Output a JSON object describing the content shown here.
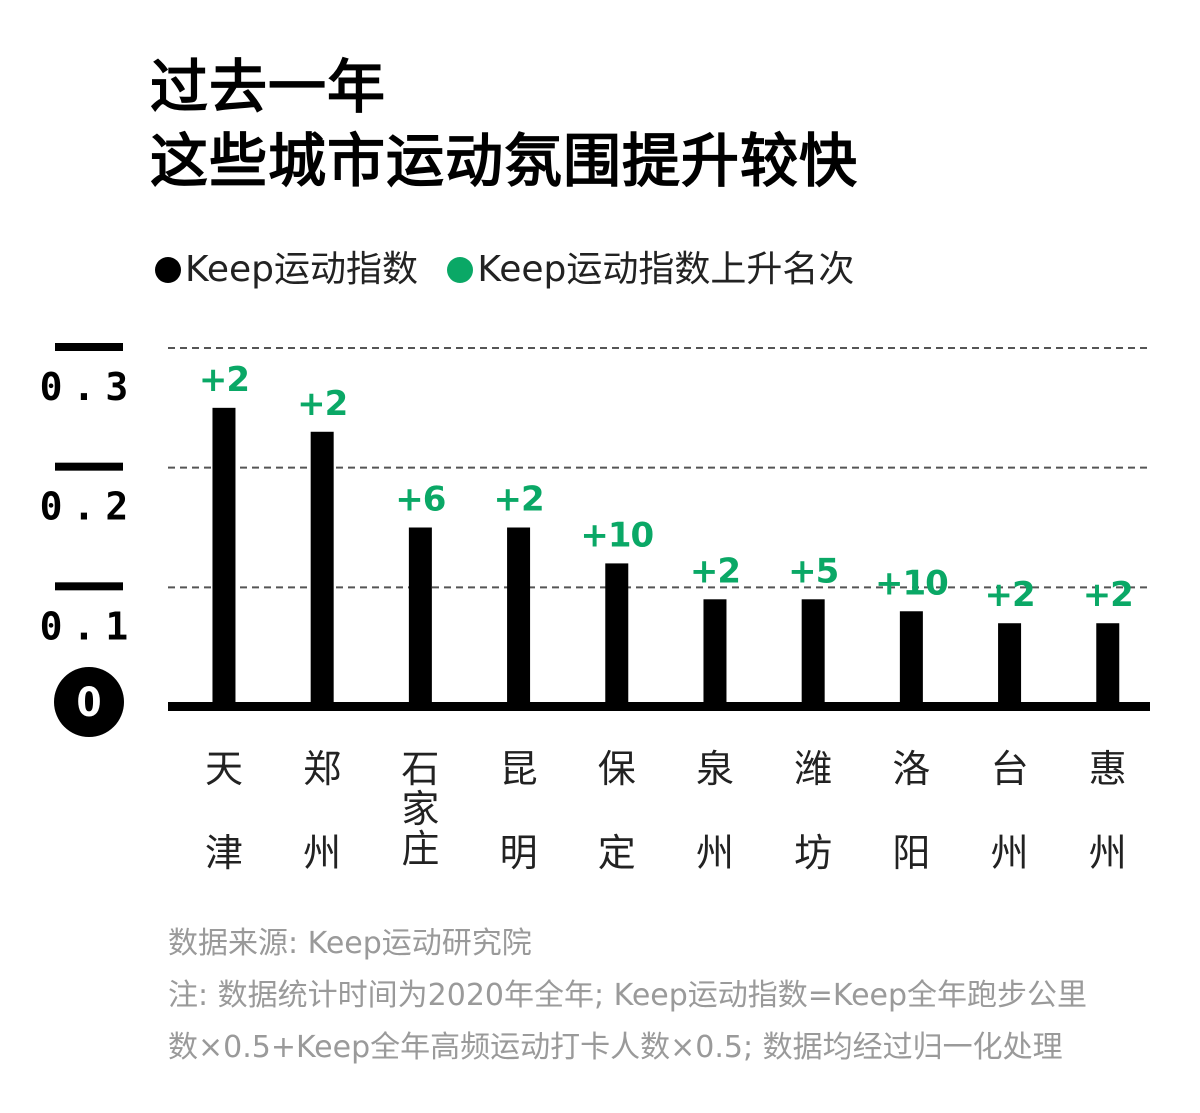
{
  "title": {
    "line1": "过去一年",
    "line2": "这些城市运动氛围提升较快"
  },
  "legend": [
    {
      "label": "Keep运动指数",
      "color": "#000000"
    },
    {
      "label": "Keep运动指数上升名次",
      "color": "#0aa866"
    }
  ],
  "chart_data": {
    "type": "bar",
    "categories": [
      "天津",
      "郑州",
      "石家庄",
      "昆明",
      "保定",
      "泉州",
      "潍坊",
      "洛阳",
      "台州",
      "惠州"
    ],
    "series": [
      {
        "name": "Keep运动指数",
        "values": [
          0.25,
          0.23,
          0.15,
          0.15,
          0.12,
          0.09,
          0.09,
          0.08,
          0.07,
          0.07
        ]
      },
      {
        "name": "Keep运动指数上升名次",
        "values": [
          "+2",
          "+2",
          "+6",
          "+2",
          "+10",
          "+2",
          "+5",
          "+10",
          "+2",
          "+2"
        ]
      }
    ],
    "ylim": [
      0,
      0.3
    ],
    "yticks": [
      "0",
      "0.1",
      "0.2",
      "0.3"
    ],
    "grid": true,
    "colors": {
      "bar": "#000000",
      "rank": "#0aa866",
      "grid": "#555555"
    }
  },
  "source": {
    "line1": "数据来源: Keep运动研究院",
    "line2": "注: 数据统计时间为2020年全年; Keep运动指数=Keep全年跑步公里",
    "line3": "数×0.5+Keep全年高频运动打卡人数×0.5; 数据均经过归一化处理"
  }
}
